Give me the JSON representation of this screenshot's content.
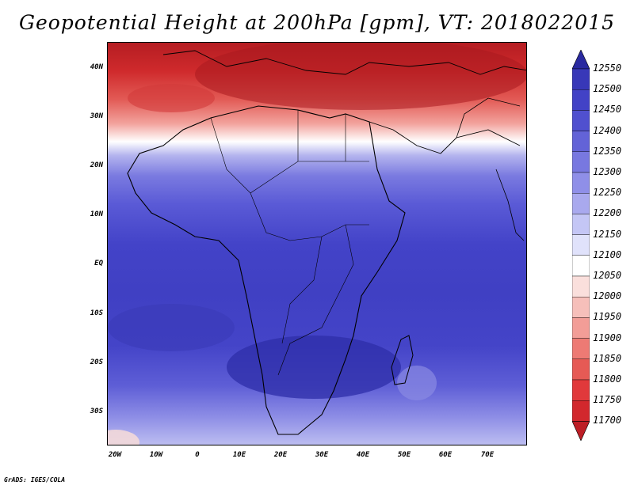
{
  "title": "Geopotential Height at 200hPa [gpm], VT: 2018022015",
  "credit": "GrADS: IGES/COLA",
  "lat_labels": [
    "40N",
    "30N",
    "20N",
    "10N",
    "EQ",
    "10S",
    "20S",
    "30S"
  ],
  "lon_labels": [
    "20W",
    "10W",
    "0",
    "10E",
    "20E",
    "30E",
    "40E",
    "50E",
    "60E",
    "70E"
  ],
  "colorbar": {
    "labels": [
      "12550",
      "12500",
      "12450",
      "12400",
      "12350",
      "12300",
      "12250",
      "12200",
      "12150",
      "12100",
      "12050",
      "12000",
      "11950",
      "11900",
      "11850",
      "11800",
      "11750",
      "11700"
    ],
    "colors": [
      "#bd1e26",
      "#d2282d",
      "#e1393b",
      "#e65a55",
      "#ed7a74",
      "#f29d97",
      "#f6bfba",
      "#fadfdc",
      "#ffffff",
      "#e0e2fb",
      "#c4c6f5",
      "#a9a9ee",
      "#8f8fe8",
      "#7878e0",
      "#6363d7",
      "#5050cf",
      "#4242c6",
      "#3838b8",
      "#2a2aa0"
    ]
  },
  "map": {
    "domain": "Africa",
    "lon_range": [
      -22,
      80
    ],
    "lat_range": [
      -37,
      45
    ]
  }
}
